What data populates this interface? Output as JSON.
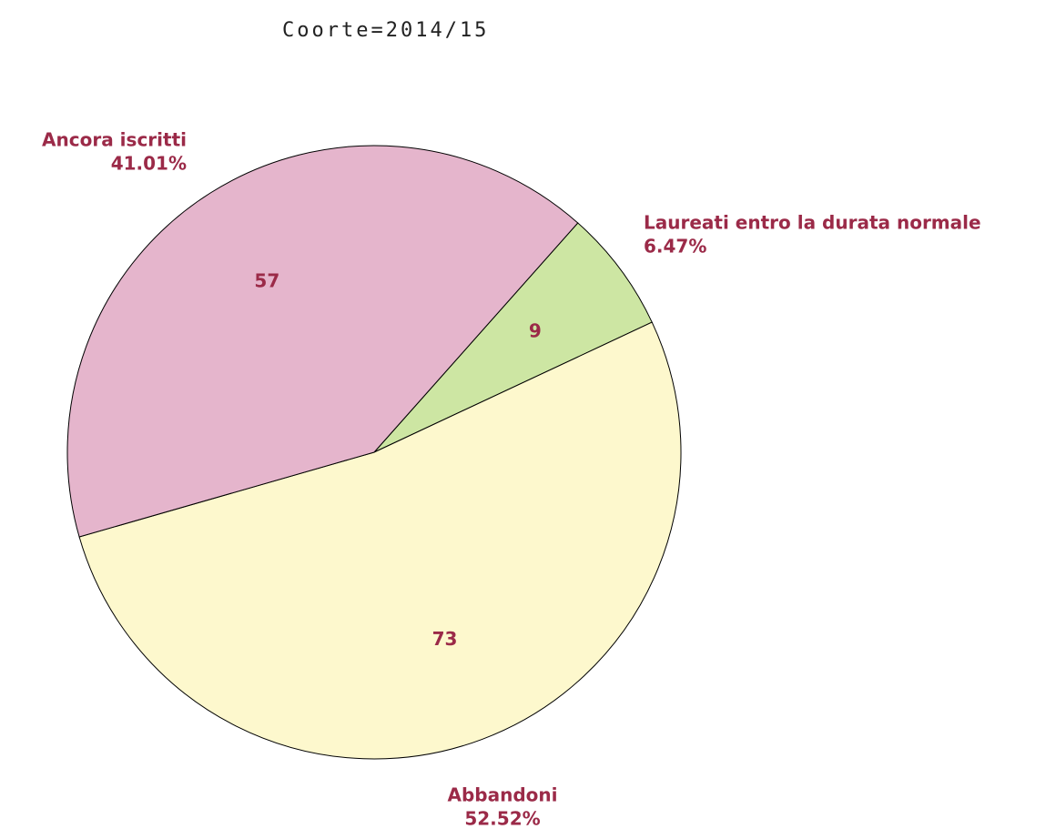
{
  "chart_data": {
    "type": "pie",
    "title": "Coorte=2014/15",
    "categories": [
      "Laureati entro la durata normale",
      "Abbandoni",
      "Ancora iscritti"
    ],
    "values": [
      9,
      73,
      57
    ],
    "percent_labels": [
      "6.47%",
      "52.52%",
      "41.01%"
    ],
    "colors": [
      "#cde6a3",
      "#fdf8cd",
      "#e5b5cc"
    ]
  }
}
